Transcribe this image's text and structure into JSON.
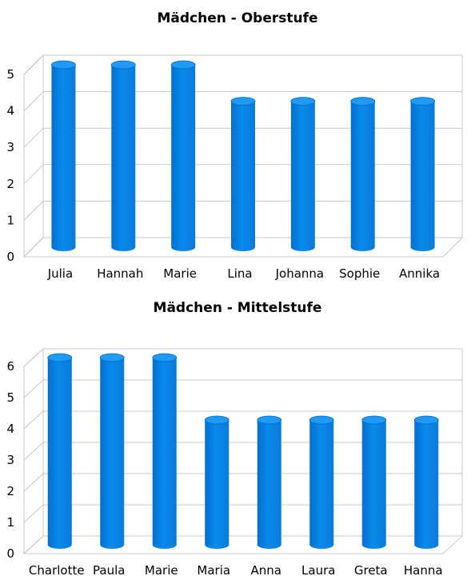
{
  "chart_data": [
    {
      "type": "bar",
      "title": "Mädchen - Oberstufe",
      "categories": [
        "Julia",
        "Hannah",
        "Marie",
        "Lina",
        "Johanna",
        "Sophie",
        "Annika"
      ],
      "values": [
        5,
        5,
        5,
        4,
        4,
        4,
        4
      ],
      "yticks": [
        0,
        1,
        2,
        3,
        4,
        5
      ],
      "ylim": [
        0,
        5
      ],
      "xlabel": "",
      "ylabel": "",
      "grid": true,
      "color": "#0a8aed"
    },
    {
      "type": "bar",
      "title": "Mädchen - Mittelstufe",
      "categories": [
        "Charlotte",
        "Paula",
        "Marie",
        "Maria",
        "Anna",
        "Laura",
        "Greta",
        "Hanna"
      ],
      "values": [
        6,
        6,
        6,
        4,
        4,
        4,
        4,
        4
      ],
      "yticks": [
        0,
        1,
        2,
        3,
        4,
        5,
        6
      ],
      "ylim": [
        0,
        6
      ],
      "xlabel": "",
      "ylabel": "",
      "grid": true,
      "color": "#0a8aed"
    }
  ]
}
